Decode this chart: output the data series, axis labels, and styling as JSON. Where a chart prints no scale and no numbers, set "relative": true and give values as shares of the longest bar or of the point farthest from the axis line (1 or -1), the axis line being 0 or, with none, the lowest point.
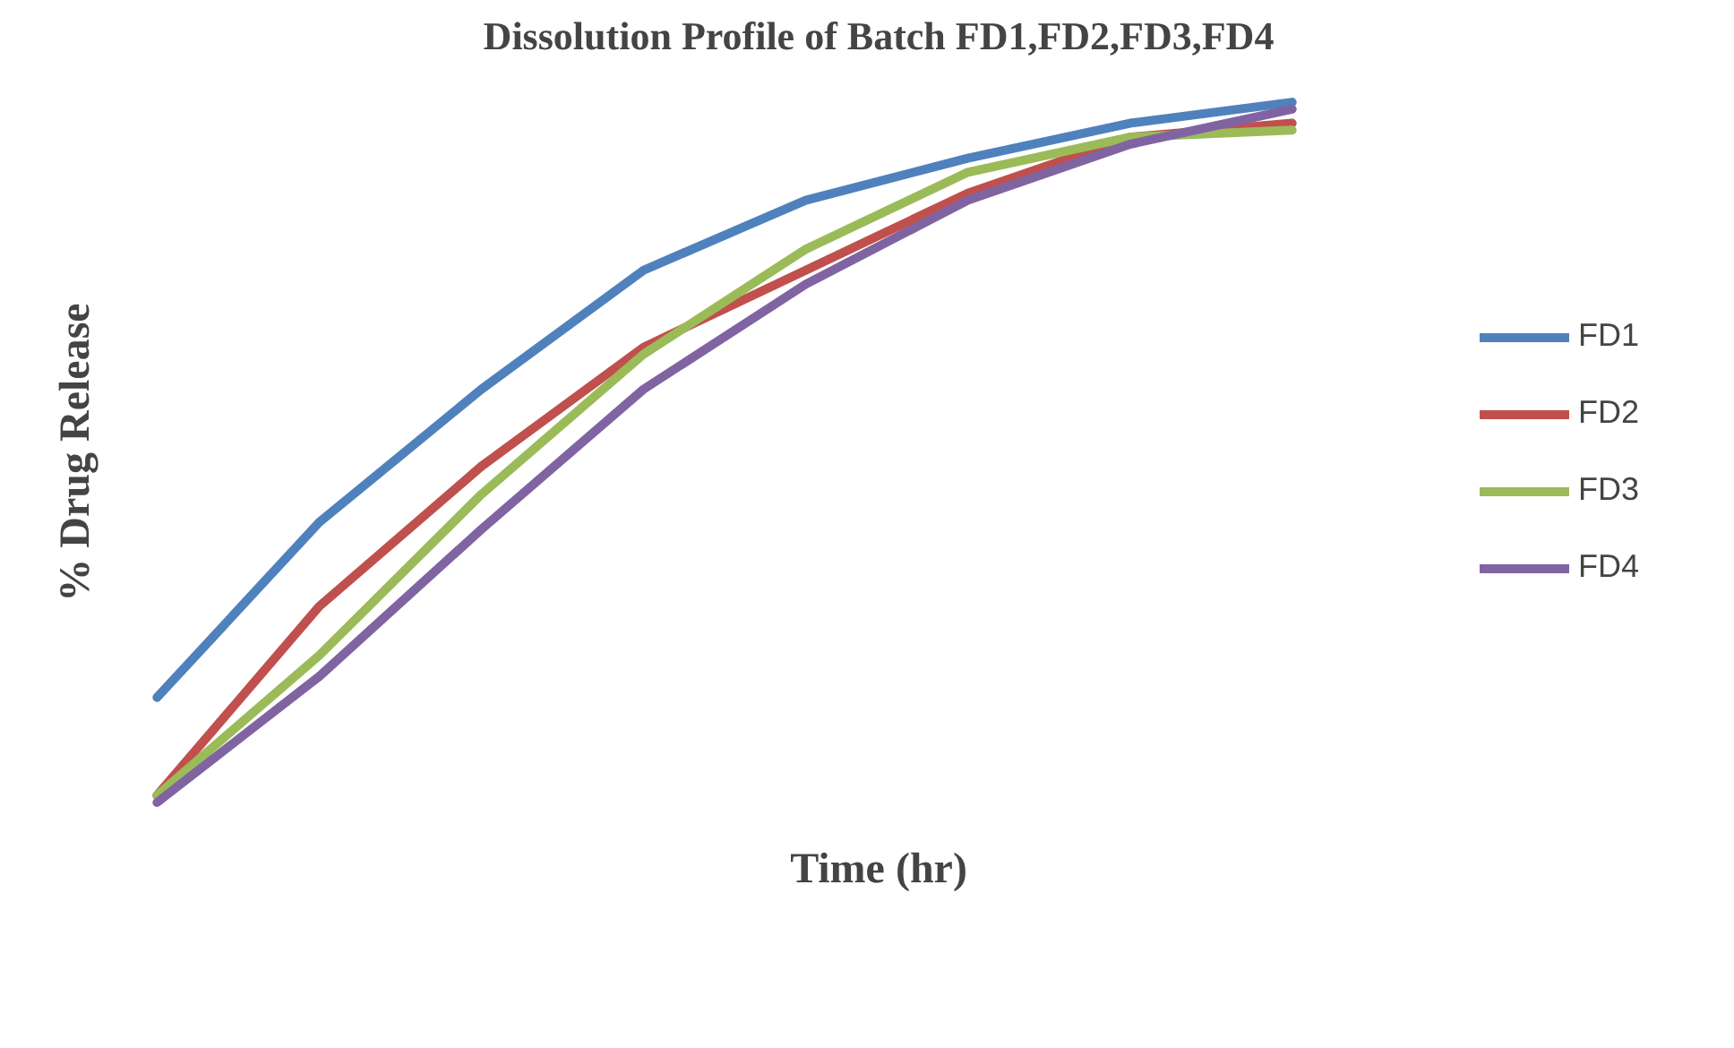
{
  "chart_data": {
    "type": "line",
    "title": "Dissolution Profile of Batch FD1,FD2,FD3,FD4",
    "xlabel": "Time (hr)",
    "ylabel": "% Drug Release",
    "relative": true,
    "legend": "right",
    "line_style": "solid",
    "marker": "none",
    "categories": [
      null,
      null,
      null,
      null,
      null,
      null,
      null,
      null
    ],
    "series": [
      {
        "name": "FD1",
        "color": "#4f81bd",
        "values": [
          0.15,
          0.4,
          0.59,
          0.76,
          0.86,
          0.92,
          0.97,
          1.0
        ]
      },
      {
        "name": "FD2",
        "color": "#c0504d",
        "values": [
          0.01,
          0.28,
          0.48,
          0.65,
          0.76,
          0.87,
          0.95,
          0.97
        ]
      },
      {
        "name": "FD3",
        "color": "#9bbb59",
        "values": [
          0.01,
          0.21,
          0.44,
          0.64,
          0.79,
          0.9,
          0.95,
          0.96
        ]
      },
      {
        "name": "FD4",
        "color": "#8064a2",
        "values": [
          0.0,
          0.18,
          0.39,
          0.59,
          0.74,
          0.86,
          0.94,
          0.99
        ]
      }
    ]
  }
}
